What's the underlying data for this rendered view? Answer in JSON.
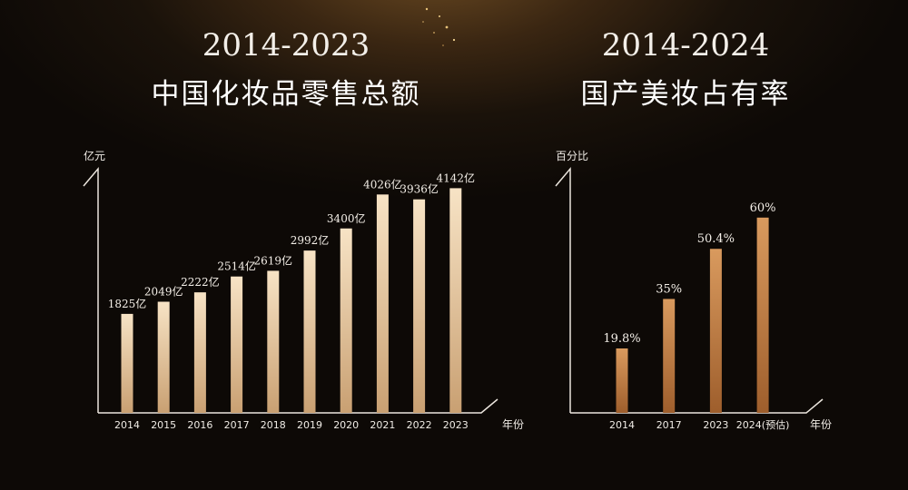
{
  "titles": {
    "left_year": "2014-2023",
    "left_main": "中国化妆品零售总额",
    "right_year": "2014-2024",
    "right_main": "国产美妆占有率"
  },
  "colors": {
    "left_bar_top": "#f7e3c5",
    "left_bar_bottom": "#c9a072",
    "right_bar_top": "#d99a5e",
    "right_bar_bottom": "#9e5e2c",
    "axis": "#ece6de"
  },
  "chart_data": [
    {
      "type": "bar",
      "title": "中国化妆品零售总额",
      "ylabel": "亿元",
      "xlabel": "年份",
      "categories": [
        "2014",
        "2015",
        "2016",
        "2017",
        "2018",
        "2019",
        "2020",
        "2021",
        "2022",
        "2023"
      ],
      "values": [
        1825,
        2049,
        2222,
        2514,
        2619,
        2992,
        3400,
        4026,
        3936,
        4142
      ],
      "labels": [
        "1825亿",
        "2049亿",
        "2222亿",
        "2514亿",
        "2619亿",
        "2992亿",
        "3400亿",
        "4026亿",
        "3936亿",
        "4142亿"
      ],
      "ylim": [
        0,
        4500
      ],
      "grid": false
    },
    {
      "type": "bar",
      "title": "国产美妆占有率",
      "ylabel": "百分比",
      "xlabel": "年份",
      "categories": [
        "2014",
        "2017",
        "2023",
        "2024(预估)"
      ],
      "values": [
        19.8,
        35,
        50.4,
        60
      ],
      "labels": [
        "19.8%",
        "35%",
        "50.4%",
        "60%"
      ],
      "ylim": [
        0,
        75
      ],
      "grid": false
    }
  ]
}
